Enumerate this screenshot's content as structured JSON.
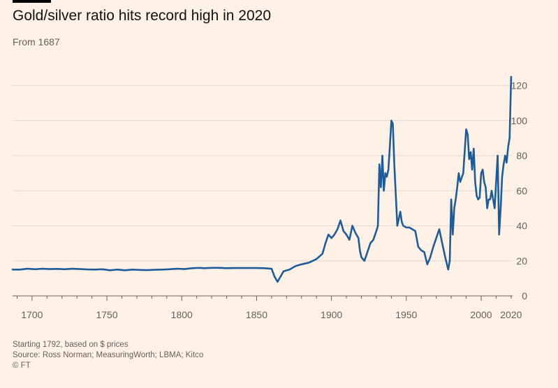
{
  "chart_data": {
    "type": "line",
    "title": "Gold/silver ratio hits record high in 2020",
    "subtitle": "From 1687",
    "xlabel": "",
    "ylabel": "",
    "xlim": [
      1687,
      2021
    ],
    "ylim": [
      0,
      125
    ],
    "x_ticks": [
      1700,
      1750,
      1800,
      1850,
      1900,
      1950,
      2000,
      2020
    ],
    "y_ticks": [
      0,
      20,
      40,
      60,
      80,
      100,
      120
    ],
    "grid": true,
    "line_color": "#1d5c9b",
    "series": [
      {
        "x": [
          1687,
          1692,
          1697,
          1702,
          1707,
          1712,
          1717,
          1722,
          1727,
          1732,
          1737,
          1742,
          1747,
          1752,
          1757,
          1762,
          1767,
          1772,
          1777,
          1782,
          1787,
          1792,
          1797,
          1802,
          1807,
          1812,
          1815,
          1820,
          1825,
          1830,
          1835,
          1840,
          1845,
          1850,
          1855,
          1860,
          1862,
          1864,
          1866,
          1868,
          1872,
          1876,
          1880,
          1885,
          1890,
          1894,
          1896,
          1898,
          1900,
          1902,
          1904,
          1906,
          1908,
          1910,
          1912,
          1914,
          1916,
          1918,
          1919,
          1920,
          1922,
          1924,
          1926,
          1928,
          1930,
          1931,
          1932,
          1933,
          1934,
          1935,
          1936,
          1937,
          1938,
          1939,
          1940,
          1941,
          1942,
          1944,
          1946,
          1947,
          1948,
          1950,
          1952,
          1954,
          1956,
          1958,
          1960,
          1962,
          1964,
          1966,
          1968,
          1970,
          1972,
          1974,
          1976,
          1978,
          1979,
          1980,
          1981,
          1982,
          1983,
          1984,
          1985,
          1986,
          1988,
          1990,
          1991,
          1992,
          1993,
          1994,
          1995,
          1996,
          1997,
          1998,
          1999,
          2000,
          2001,
          2002,
          2003,
          2004,
          2005,
          2006,
          2007,
          2008,
          2009,
          2010,
          2011,
          2012,
          2013,
          2014,
          2015,
          2016,
          2017,
          2018,
          2019,
          2020
        ],
        "y": [
          15,
          15,
          15.5,
          15.2,
          15.5,
          15.3,
          15.4,
          15.2,
          15.5,
          15.3,
          15.1,
          15,
          15.2,
          14.6,
          15,
          14.6,
          15,
          14.8,
          14.7,
          14.9,
          15,
          15.2,
          15.5,
          15.3,
          15.8,
          16,
          15.8,
          16,
          16,
          15.8,
          15.9,
          15.9,
          15.9,
          15.9,
          15.8,
          15.5,
          11,
          8,
          11,
          14,
          15,
          17,
          18,
          19,
          21,
          24,
          30,
          35,
          33,
          35,
          38,
          43,
          37,
          35,
          32,
          40,
          36,
          33,
          26,
          22,
          20,
          25,
          30,
          32,
          37,
          40,
          75,
          62,
          80,
          60,
          70,
          68,
          72,
          85,
          100,
          98,
          75,
          40,
          48,
          42,
          40,
          39,
          39,
          38,
          37,
          28,
          26,
          25,
          18,
          22,
          28,
          33,
          38,
          30,
          22,
          15,
          20,
          55,
          35,
          50,
          55,
          62,
          70,
          65,
          70,
          95,
          92,
          78,
          82,
          72,
          84,
          65,
          57,
          55,
          56,
          70,
          72,
          65,
          62,
          50,
          55,
          55,
          60,
          55,
          50,
          65,
          80,
          35,
          50,
          68,
          75,
          80,
          76,
          85,
          90,
          125
        ]
      }
    ],
    "footnotes": [
      "Starting 1792, based on $ prices",
      "Source: Ross Norman; MeasuringWorth; LBMA; Kitco",
      "© FT"
    ]
  }
}
